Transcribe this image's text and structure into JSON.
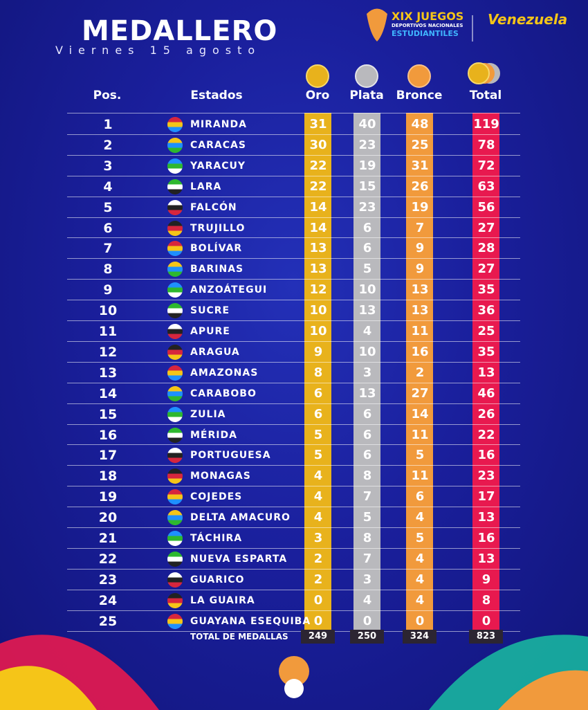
{
  "header": {
    "title": "MEDALLERO",
    "subtitle": "Viernes 15 agosto",
    "logo": {
      "line1": "XIX JUEGOS",
      "line2": "DEPORTIVOS NACIONALES",
      "line3": "ESTUDIANTILES"
    },
    "brand": "Venezuela"
  },
  "table": {
    "columns": [
      "Pos.",
      "Estados",
      "Oro",
      "Plata",
      "Bronce",
      "Total"
    ],
    "rows": [
      [
        1,
        "MIRANDA",
        31,
        40,
        48,
        119
      ],
      [
        2,
        "CARACAS",
        30,
        23,
        25,
        78
      ],
      [
        3,
        "YARACUY",
        22,
        19,
        31,
        72
      ],
      [
        4,
        "LARA",
        22,
        15,
        26,
        63
      ],
      [
        5,
        "FALCÓN",
        14,
        23,
        19,
        56
      ],
      [
        6,
        "TRUJILLO",
        14,
        6,
        7,
        27
      ],
      [
        7,
        "BOLÍVAR",
        13,
        6,
        9,
        28
      ],
      [
        8,
        "BARINAS",
        13,
        5,
        9,
        27
      ],
      [
        9,
        "ANZOÁTEGUI",
        12,
        10,
        13,
        35
      ],
      [
        10,
        "SUCRE",
        10,
        13,
        13,
        36
      ],
      [
        11,
        "APURE",
        10,
        4,
        11,
        25
      ],
      [
        12,
        "ARAGUA",
        9,
        10,
        16,
        35
      ],
      [
        13,
        "AMAZONAS",
        8,
        3,
        2,
        13
      ],
      [
        14,
        "CARABOBO",
        6,
        13,
        27,
        46
      ],
      [
        15,
        "ZULIA",
        6,
        6,
        14,
        26
      ],
      [
        16,
        "MÉRIDA",
        5,
        6,
        11,
        22
      ],
      [
        17,
        "PORTUGUESA",
        5,
        6,
        5,
        16
      ],
      [
        18,
        "MONAGAS",
        4,
        8,
        11,
        23
      ],
      [
        19,
        "COJEDES",
        4,
        7,
        6,
        17
      ],
      [
        20,
        "DELTA AMACURO",
        4,
        5,
        4,
        13
      ],
      [
        21,
        "TÁCHIRA",
        3,
        8,
        5,
        16
      ],
      [
        22,
        "NUEVA ESPARTA",
        2,
        7,
        4,
        13
      ],
      [
        23,
        "GUARICO",
        2,
        3,
        4,
        9
      ],
      [
        24,
        "LA GUAIRA",
        0,
        4,
        4,
        8
      ],
      [
        25,
        "GUAYANA ESEQUIBA",
        0,
        0,
        0,
        0
      ]
    ],
    "footer": {
      "label": "TOTAL DE MEDALLAS",
      "values": [
        249,
        250,
        324,
        823
      ]
    }
  }
}
